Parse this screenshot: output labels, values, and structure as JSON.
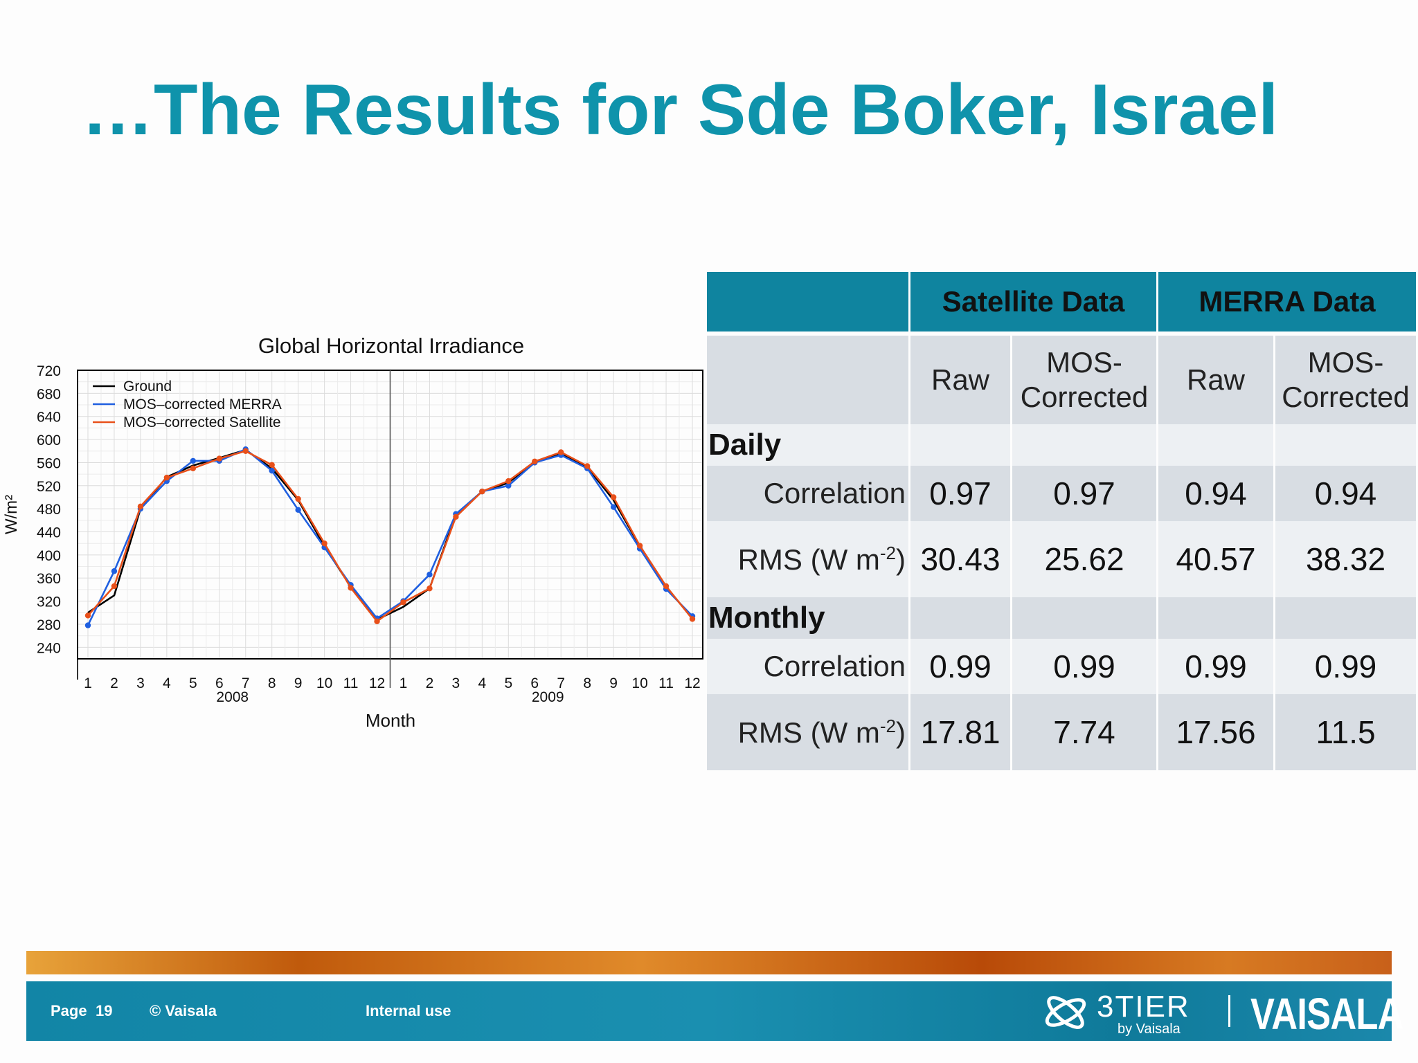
{
  "slide": {
    "title": "…The Results for Sde Boker, Israel",
    "footer": {
      "page": "Page",
      "page_number": "19",
      "copyright": "© Vaisala",
      "classification": "Internal use",
      "logo_3tier": "3TIER",
      "logo_3tier_sub": "by Vaisala",
      "logo_vaisala": "VAISALA"
    }
  },
  "chart_data": {
    "type": "line",
    "title": "Global Horizontal Irradiance",
    "xlabel": "Month",
    "ylabel": "W/m²",
    "ylim": [
      220,
      720
    ],
    "yticks": [
      240,
      280,
      320,
      360,
      400,
      440,
      480,
      520,
      560,
      600,
      640,
      680,
      720
    ],
    "categories": [
      "1",
      "2",
      "3",
      "4",
      "5",
      "6",
      "7",
      "8",
      "9",
      "10",
      "11",
      "12",
      "1",
      "2",
      "3",
      "4",
      "5",
      "6",
      "7",
      "8",
      "9",
      "10",
      "11",
      "12"
    ],
    "year_labels": [
      {
        "label": "2008",
        "at_category_index": 5.5
      },
      {
        "label": "2009",
        "at_category_index": 17.5
      }
    ],
    "year_divider_between": [
      11,
      12
    ],
    "grid": true,
    "legend_position": "top-left",
    "series": [
      {
        "name": "Ground",
        "color": "#000000",
        "markers": false,
        "values": [
          300,
          330,
          480,
          535,
          555,
          568,
          582,
          550,
          495,
          415,
          345,
          288,
          310,
          342,
          470,
          510,
          525,
          562,
          575,
          552,
          495,
          415,
          345,
          290
        ]
      },
      {
        "name": "MOS–corrected MERRA",
        "color": "#1f5fe0",
        "markers": true,
        "values": [
          278,
          372,
          480,
          528,
          563,
          563,
          583,
          546,
          478,
          413,
          348,
          290,
          320,
          366,
          471,
          510,
          520,
          560,
          573,
          550,
          483,
          411,
          341,
          294
        ]
      },
      {
        "name": "MOS–corrected Satellite",
        "color": "#e8501a",
        "markers": true,
        "values": [
          295,
          346,
          484,
          534,
          550,
          567,
          580,
          556,
          497,
          420,
          343,
          285,
          318,
          342,
          466,
          510,
          528,
          562,
          578,
          554,
          500,
          416,
          346,
          289
        ]
      }
    ]
  },
  "table": {
    "group_headers": [
      "Satellite Data",
      "MERRA Data"
    ],
    "sub_headers": [
      "Raw",
      "MOS- Corrected",
      "Raw",
      "MOS- Corrected"
    ],
    "sections": [
      {
        "label": "Daily",
        "rows": [
          {
            "metric": "Correlation",
            "values": [
              "0.97",
              "0.97",
              "0.94",
              "0.94"
            ]
          },
          {
            "metric": "RMS (W m",
            "metric_sup": "-2",
            "metric_end": ")",
            "values": [
              "30.43",
              "25.62",
              "40.57",
              "38.32"
            ]
          }
        ]
      },
      {
        "label": "Monthly",
        "rows": [
          {
            "metric": "Correlation",
            "values": [
              "0.99",
              "0.99",
              "0.99",
              "0.99"
            ]
          },
          {
            "metric": "RMS (W m",
            "metric_sup": "-2",
            "metric_end": ")",
            "values": [
              "17.81",
              "7.74",
              "17.56",
              "11.5"
            ]
          }
        ]
      }
    ]
  }
}
